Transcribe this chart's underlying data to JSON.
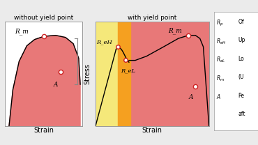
{
  "bg_color": "#ebebeb",
  "left_panel": {
    "title": "without yield point",
    "fill_color": "#e87878",
    "box_bg": "#ffffff",
    "xlabel": "Strain",
    "curve_color": "#000000",
    "rm_label": "R_m",
    "a_label": "A"
  },
  "right_panel": {
    "title": "with yield point",
    "ylabel": "Stress",
    "xlabel": "Strain",
    "fill_red_color": "#e87878",
    "fill_yellow_color": "#f5e87a",
    "fill_orange_color": "#f5a020",
    "rm_label": "R_m",
    "reh_label": "R_eH",
    "rel_label": "R_eL",
    "a_label": "A",
    "curve_color": "#000000"
  },
  "legend": {
    "items": [
      [
        "R_p",
        "Of"
      ],
      [
        "R_eH",
        "Up"
      ],
      [
        "R_eL",
        "Lo"
      ],
      [
        "R_m",
        "(U"
      ],
      [
        "A",
        "Pe"
      ],
      [
        "",
        "aft"
      ]
    ]
  }
}
